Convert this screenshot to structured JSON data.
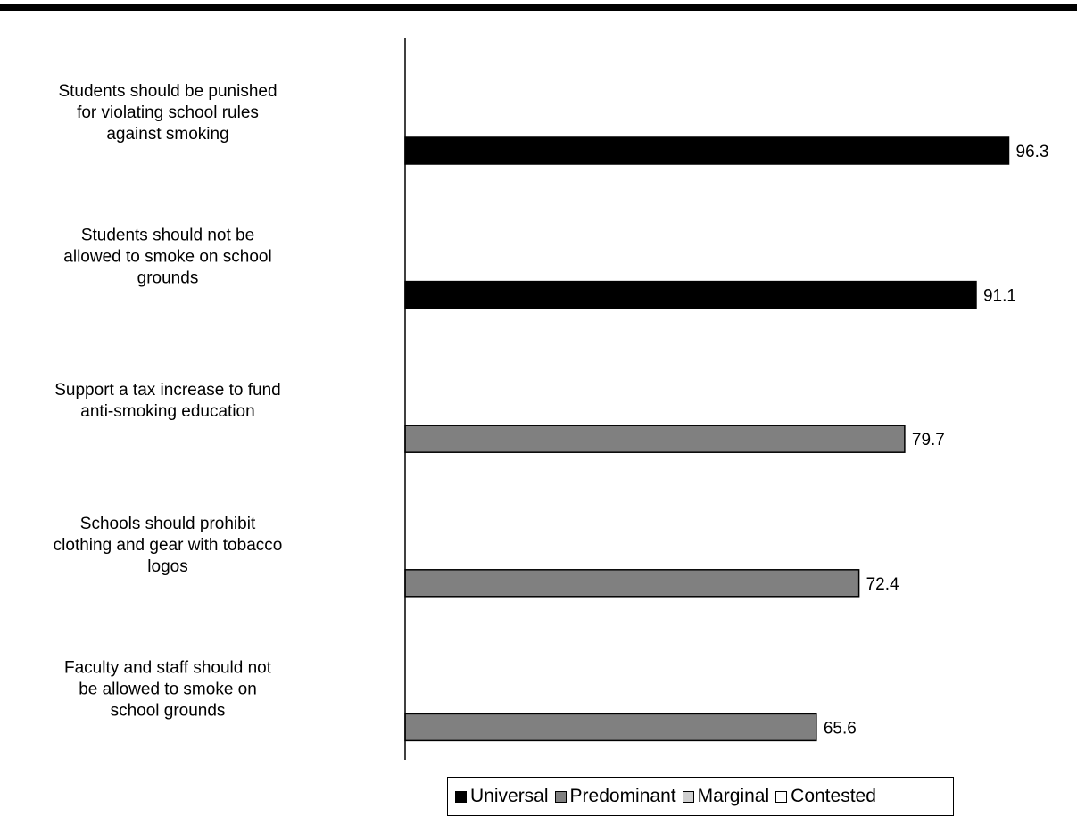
{
  "colors": {
    "Universal": "#000000",
    "Predominant": "#808080",
    "Marginal": "#d0d0d0",
    "Contested": "#ffffff"
  },
  "chart_data": {
    "type": "bar",
    "orientation": "horizontal",
    "categories": [
      [
        "Students should be punished",
        "for violating school rules",
        "against smoking"
      ],
      [
        "Students should not be",
        "allowed to smoke on school",
        "grounds"
      ],
      [
        "Support a tax increase to fund",
        "anti-smoking education"
      ],
      [
        "Schools should prohibit",
        "clothing and gear with tobacco",
        "logos"
      ],
      [
        "Faculty and staff should not",
        "be allowed to smoke on",
        "school grounds"
      ]
    ],
    "values": [
      96.3,
      91.1,
      79.7,
      72.4,
      65.6
    ],
    "value_labels": [
      "96.3",
      "91.1",
      "79.7",
      "72.4",
      "65.6"
    ],
    "bar_groups": [
      "Universal",
      "Universal",
      "Predominant",
      "Predominant",
      "Predominant"
    ],
    "xlim": [
      0,
      100
    ],
    "grid": false,
    "legend_position": "bottom",
    "legend": [
      "Universal",
      "Predominant",
      "Marginal",
      "Contested"
    ],
    "title": "",
    "xlabel": "",
    "ylabel": ""
  }
}
